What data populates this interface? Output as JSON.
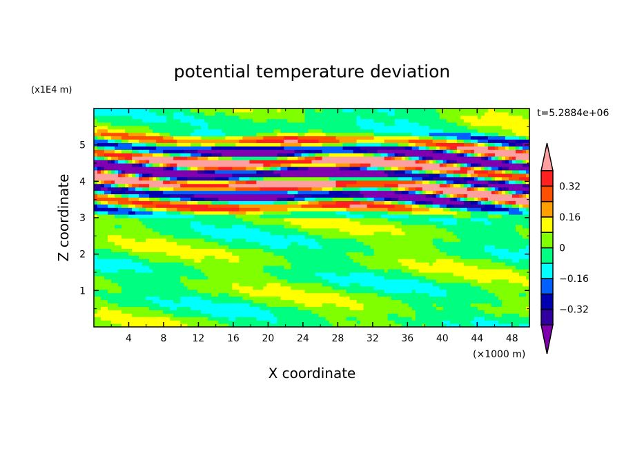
{
  "chart_data": {
    "type": "heatmap",
    "title": "potential temperature deviation",
    "xlabel": "X coordinate",
    "ylabel": "Z coordinate",
    "x_unit": "(×1000 m)",
    "y_unit": "(x1E4 m)",
    "time_label": "t=5.2884e+06",
    "xlim": [
      0,
      50
    ],
    "ylim": [
      0,
      6
    ],
    "x_ticks": [
      4,
      8,
      12,
      16,
      20,
      24,
      28,
      32,
      36,
      40,
      44,
      48
    ],
    "y_ticks": [
      1,
      2,
      3,
      4,
      5
    ],
    "colorbar": {
      "levels": [
        -0.4,
        -0.32,
        -0.24,
        -0.16,
        -0.08,
        0,
        0.08,
        0.16,
        0.24,
        0.32,
        0.4
      ],
      "labels": [
        "0.32",
        "0.16",
        "0",
        "−0.16",
        "−0.32"
      ],
      "label_values": [
        0.32,
        0.16,
        0,
        -0.16,
        -0.32
      ],
      "colors": [
        "#8000b0",
        "#3000a0",
        "#0000b0",
        "#0060ff",
        "#00ffff",
        "#00ff80",
        "#80ff00",
        "#ffff00",
        "#ffa000",
        "#ff5000",
        "#ff2020",
        "#ffa0a0"
      ],
      "extend": "both"
    },
    "description_of_field": {
      "strong_layer_z": [
        3.0,
        5.4
      ],
      "weak_region_value_range": [
        -0.08,
        0.08
      ]
    }
  }
}
